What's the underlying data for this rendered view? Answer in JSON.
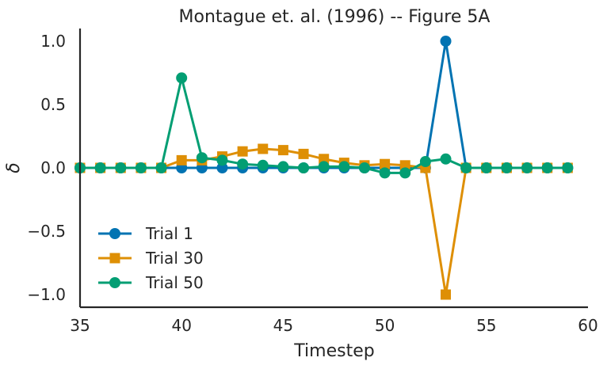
{
  "chart_data": {
    "type": "line",
    "title": "Montague et. al. (1996) -- Figure 5A",
    "xlabel": "Timestep",
    "ylabel": "δ",
    "xlim": [
      35,
      60
    ],
    "ylim": [
      -1.1,
      1.1
    ],
    "xticks": [
      "35",
      "40",
      "45",
      "50",
      "55",
      "60"
    ],
    "yticks": [
      "−1.0",
      "−0.5",
      "0.0",
      "0.5",
      "1.0"
    ],
    "grid": false,
    "legend_position": "lower-left",
    "x": [
      35,
      36,
      37,
      38,
      39,
      40,
      41,
      42,
      43,
      44,
      45,
      46,
      47,
      48,
      49,
      50,
      51,
      52,
      53,
      54,
      55,
      56,
      57,
      58,
      59
    ],
    "series": [
      {
        "name": "Trial 1",
        "color": "#0173b2",
        "marker": "circle",
        "values": [
          0,
          0,
          0,
          0,
          0,
          0,
          0,
          0,
          0,
          0,
          0,
          0,
          0,
          0,
          0,
          0,
          0,
          0,
          1.0,
          0,
          0,
          0,
          0,
          0,
          0
        ]
      },
      {
        "name": "Trial 30",
        "color": "#de8f05",
        "marker": "square",
        "values": [
          0,
          0,
          0,
          0,
          0,
          0.06,
          0.06,
          0.09,
          0.13,
          0.15,
          0.14,
          0.11,
          0.07,
          0.04,
          0.02,
          0.03,
          0.02,
          0,
          -1.0,
          0,
          0,
          0,
          0,
          0,
          0
        ]
      },
      {
        "name": "Trial 50",
        "color": "#029e73",
        "marker": "circle",
        "values": [
          0,
          0,
          0,
          0,
          0,
          0.71,
          0.08,
          0.06,
          0.03,
          0.02,
          0.01,
          0,
          0.01,
          0.01,
          0.0,
          -0.04,
          -0.04,
          0.05,
          0.07,
          0,
          0,
          0,
          0,
          0,
          0
        ]
      }
    ]
  }
}
